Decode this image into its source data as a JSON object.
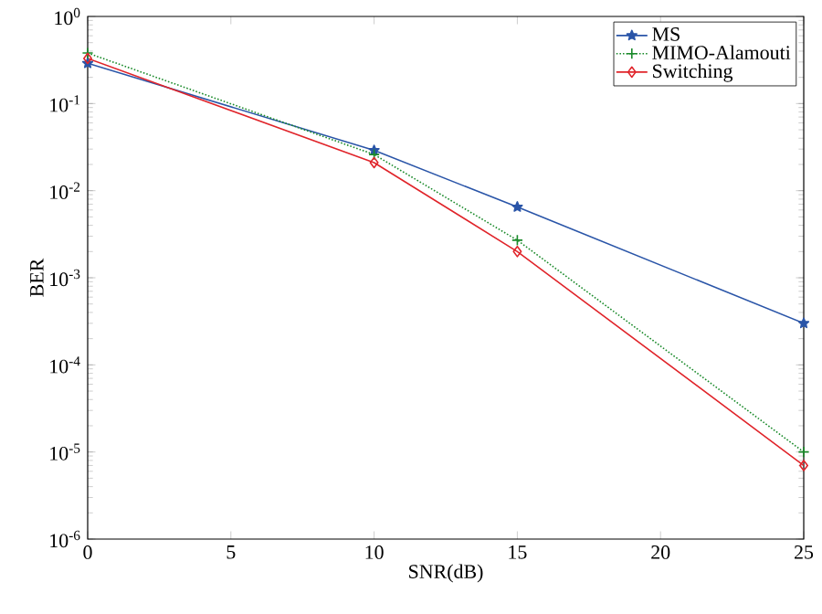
{
  "chart_data": {
    "type": "line",
    "xlabel": "SNR(dB)",
    "ylabel": "BER",
    "x": [
      0,
      10,
      15,
      25
    ],
    "log": "y",
    "legend": "top right",
    "xlim": [
      0,
      25
    ],
    "ylim": [
      1e-06,
      1
    ],
    "xticks": [
      0,
      5,
      10,
      15,
      20,
      25
    ],
    "yticks": [
      {
        "value": 1e-06,
        "label": "10$^{-6}$"
      },
      {
        "value": 1e-05,
        "label": "10$^{-5}$"
      },
      {
        "value": 0.0001,
        "label": "10$^{-4}$"
      },
      {
        "value": 0.001,
        "label": "10$^{-3}$"
      },
      {
        "value": 0.01,
        "label": "10$^{-2}$"
      },
      {
        "value": 0.1,
        "label": "10$^{-1}$"
      },
      {
        "value": 1,
        "label": "10$^{0}$"
      }
    ],
    "series": [
      {
        "name": "MS",
        "color": "#2a55a8",
        "marker": "star",
        "line_style": "solid",
        "values": [
          0.29,
          0.029,
          0.0065,
          0.0003
        ]
      },
      {
        "name": "MIMO-Alamouti",
        "color": "#1a8a2a",
        "marker": "cross",
        "line_style": "dotted",
        "values": [
          0.38,
          0.026,
          0.0027,
          1e-05
        ]
      },
      {
        "name": "Switching",
        "color": "#e0242a",
        "marker": "diamond",
        "line_style": "solid",
        "values": [
          0.33,
          0.021,
          0.002,
          7e-06
        ]
      }
    ]
  }
}
